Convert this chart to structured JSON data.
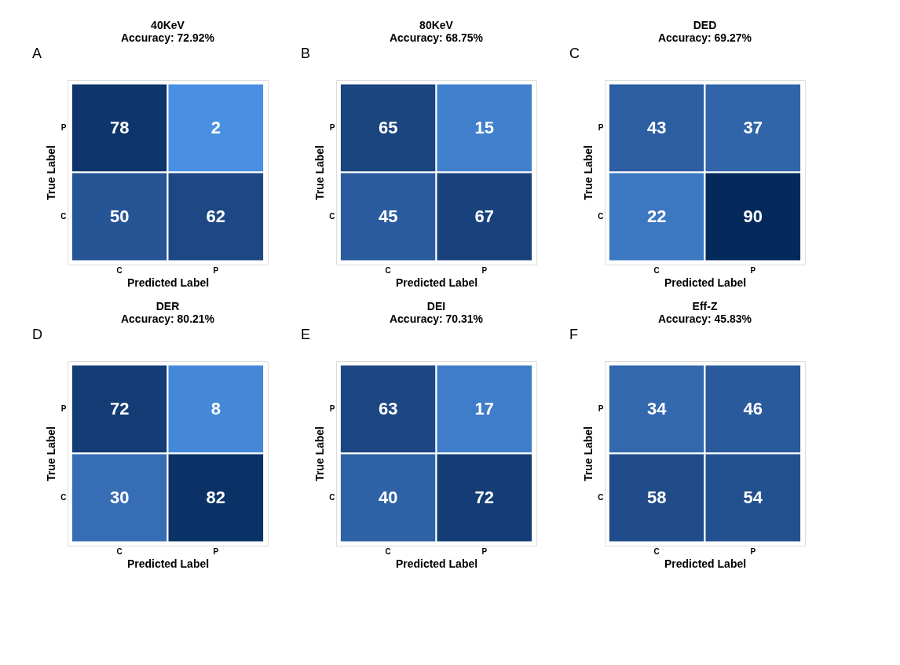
{
  "chart_data": [
    {
      "type": "heatmap",
      "title": "40KeV",
      "subtitle": "Accuracy: 72.92%",
      "xlabel": "Predicted Label",
      "ylabel": "True Label",
      "annotations": [
        "A"
      ],
      "categories": [
        "C",
        "P"
      ],
      "y_categories": [
        "P",
        "C"
      ],
      "cells": [
        [
          78,
          2
        ],
        [
          50,
          62
        ]
      ],
      "data_labels": true
    },
    {
      "type": "heatmap",
      "title": "80KeV",
      "subtitle": "Accuracy: 68.75%",
      "xlabel": "Predicted Label",
      "ylabel": "True Label",
      "annotations": [
        "B"
      ],
      "categories": [
        "C",
        "P"
      ],
      "y_categories": [
        "P",
        "C"
      ],
      "cells": [
        [
          65,
          15
        ],
        [
          45,
          67
        ]
      ],
      "data_labels": true
    },
    {
      "type": "heatmap",
      "title": "DED",
      "subtitle": "Accuracy: 69.27%",
      "xlabel": "Predicted Label",
      "ylabel": "True Label",
      "annotations": [
        "C"
      ],
      "categories": [
        "C",
        "P"
      ],
      "y_categories": [
        "P",
        "C"
      ],
      "cells": [
        [
          43,
          37
        ],
        [
          22,
          90
        ]
      ],
      "data_labels": true
    },
    {
      "type": "heatmap",
      "title": "DER",
      "subtitle": "Accuracy: 80.21%",
      "xlabel": "Predicted Label",
      "ylabel": "True Label",
      "annotations": [
        "D"
      ],
      "categories": [
        "C",
        "P"
      ],
      "y_categories": [
        "P",
        "C"
      ],
      "cells": [
        [
          72,
          8
        ],
        [
          30,
          82
        ]
      ],
      "data_labels": true
    },
    {
      "type": "heatmap",
      "title": "DEI",
      "subtitle": "Accuracy: 70.31%",
      "xlabel": "Predicted Label",
      "ylabel": "True Label",
      "annotations": [
        "E"
      ],
      "categories": [
        "C",
        "P"
      ],
      "y_categories": [
        "P",
        "C"
      ],
      "cells": [
        [
          63,
          17
        ],
        [
          40,
          72
        ]
      ],
      "data_labels": true
    },
    {
      "type": "heatmap",
      "title": "Eff-Z",
      "subtitle": "Accuracy: 45.83%",
      "xlabel": "Predicted Label",
      "ylabel": "True Label",
      "annotations": [
        "F"
      ],
      "categories": [
        "C",
        "P"
      ],
      "y_categories": [
        "P",
        "C"
      ],
      "cells": [
        [
          34,
          46
        ],
        [
          58,
          54
        ]
      ],
      "data_labels": true
    }
  ]
}
